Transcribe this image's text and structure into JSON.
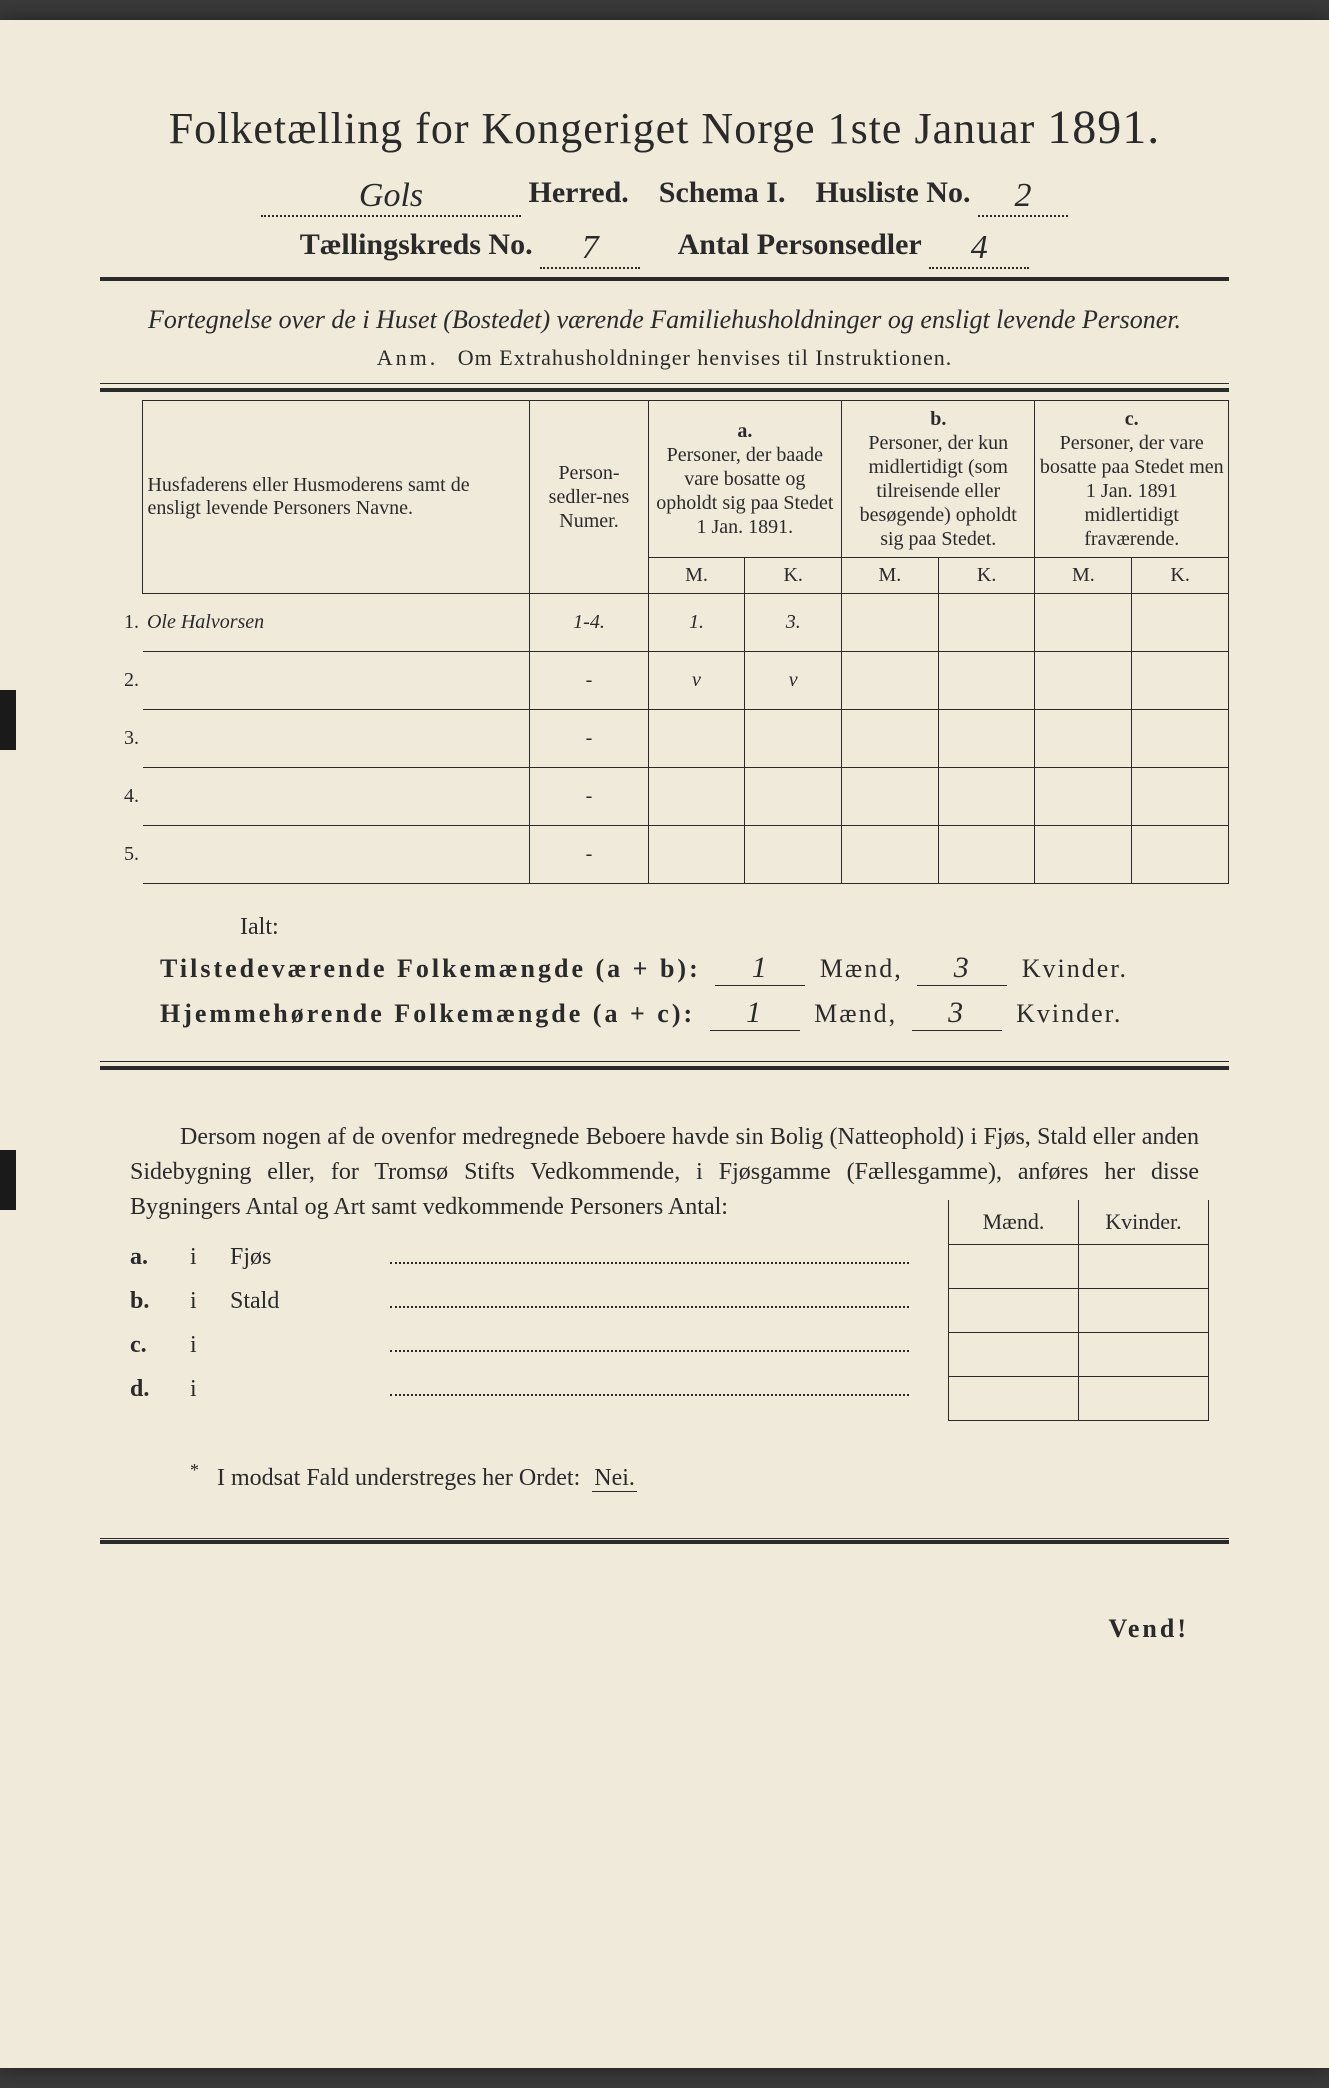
{
  "colors": {
    "paper": "#f0eadb",
    "ink": "#2a2a2a",
    "background": "#3a3a3a"
  },
  "typography": {
    "title_fontsize": 44,
    "body_fontsize": 24,
    "table_header_fontsize": 20,
    "handwriting_font": "Brush Script MT"
  },
  "header": {
    "title_prefix": "Folketælling for Kongeriget Norge 1ste Januar",
    "year": "1891.",
    "herred_value": "Gols",
    "herred_label": "Herred.",
    "schema_label": "Schema I.",
    "husliste_label": "Husliste No.",
    "husliste_value": "2",
    "kreds_label": "Tællingskreds No.",
    "kreds_value": "7",
    "personsedler_label": "Antal Personsedler",
    "personsedler_value": "4"
  },
  "subtitle": {
    "line1": "Fortegnelse over de i Huset (Bostedet) værende Familiehusholdninger og ensligt levende Personer.",
    "anm_label": "Anm.",
    "anm_text": "Om Extrahusholdninger henvises til Instruktionen."
  },
  "table": {
    "col_name": "Husfaderens eller Husmoderens samt de ensligt levende Personers Navne.",
    "col_num": "Person-sedler-nes Numer.",
    "col_a_letter": "a.",
    "col_a": "Personer, der baade vare bosatte og opholdt sig paa Stedet 1 Jan. 1891.",
    "col_b_letter": "b.",
    "col_b": "Personer, der kun midlertidigt (som tilreisende eller besøgende) opholdt sig paa Stedet.",
    "col_c_letter": "c.",
    "col_c": "Personer, der vare bosatte paa Stedet men 1 Jan. 1891 midlertidigt fraværende.",
    "m": "M.",
    "k": "K.",
    "rows": [
      {
        "n": "1.",
        "name": "Ole Halvorsen",
        "num": "1-4.",
        "a_m": "1.",
        "a_k": "3.",
        "b_m": "",
        "b_k": "",
        "c_m": "",
        "c_k": ""
      },
      {
        "n": "2.",
        "name": "",
        "num": "-",
        "a_m": "v",
        "a_k": "v",
        "b_m": "",
        "b_k": "",
        "c_m": "",
        "c_k": ""
      },
      {
        "n": "3.",
        "name": "",
        "num": "-",
        "a_m": "",
        "a_k": "",
        "b_m": "",
        "b_k": "",
        "c_m": "",
        "c_k": ""
      },
      {
        "n": "4.",
        "name": "",
        "num": "-",
        "a_m": "",
        "a_k": "",
        "b_m": "",
        "b_k": "",
        "c_m": "",
        "c_k": ""
      },
      {
        "n": "5.",
        "name": "",
        "num": "-",
        "a_m": "",
        "a_k": "",
        "b_m": "",
        "b_k": "",
        "c_m": "",
        "c_k": ""
      }
    ]
  },
  "totals": {
    "ialt": "Ialt:",
    "line1_label": "Tilstedeværende Folkemængde (a + b):",
    "line1_m": "1",
    "line1_k": "3",
    "line2_label": "Hjemmehørende Folkemængde (a + c):",
    "line2_m": "1",
    "line2_k": "3",
    "maend": "Mænd,",
    "kvinder": "Kvinder."
  },
  "paragraph": "Dersom nogen af de ovenfor medregnede Beboere havde sin Bolig (Natteophold) i Fjøs, Stald eller anden Sidebygning eller, for Tromsø Stifts Vedkommende, i Fjøsgamme (Fællesgamme), anføres her disse Bygningers Antal og Art samt vedkommende Personers Antal:",
  "buildings": {
    "maend": "Mænd.",
    "kvinder": "Kvinder.",
    "rows": [
      {
        "lbl": "a.",
        "i": "i",
        "txt": "Fjøs"
      },
      {
        "lbl": "b.",
        "i": "i",
        "txt": "Stald"
      },
      {
        "lbl": "c.",
        "i": "i",
        "txt": ""
      },
      {
        "lbl": "d.",
        "i": "i",
        "txt": ""
      }
    ]
  },
  "footnote": {
    "text_before": "I modsat Fald understreges her Ordet:",
    "nei": "Nei."
  },
  "vend": "Vend!"
}
